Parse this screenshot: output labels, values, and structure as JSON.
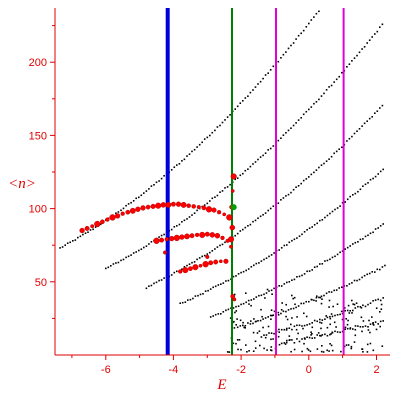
{
  "chart_data": {
    "type": "scatter",
    "title": "",
    "xlabel": "E",
    "ylabel": "<n>",
    "xlim": [
      -7.5,
      2.4
    ],
    "ylim": [
      0,
      237
    ],
    "x_ticks": [
      -6,
      -4,
      -2,
      0,
      2
    ],
    "y_ticks": [
      50,
      100,
      150,
      200
    ],
    "x_tick_labels": [
      "-6",
      "-4",
      "-2",
      "0",
      "2"
    ],
    "y_tick_labels": [
      "50",
      "100",
      "150",
      "200"
    ],
    "grid": false,
    "legend": "none",
    "colors": {
      "axes": "#e00000",
      "points": "#000000",
      "highlight": "#ff0000",
      "highlight_edge": "#b00000",
      "green_marker": "#00a000"
    },
    "vertical_lines": [
      {
        "x": -4.17,
        "color": "#0000dd",
        "width": "thick"
      },
      {
        "x": -2.27,
        "color": "#008000",
        "width": "medium"
      },
      {
        "x": -0.97,
        "color": "#dd00dd",
        "width": "medium"
      },
      {
        "x": 1.03,
        "color": "#dd00dd",
        "width": "medium"
      }
    ],
    "series": [
      {
        "kind": "band",
        "x_range": [
          -7.35,
          2.25
        ],
        "y_start": 73,
        "slope": 12.4,
        "curvature": 1.15,
        "spread": 1.0
      },
      {
        "kind": "band",
        "x_range": [
          -6.0,
          2.25
        ],
        "y_start": 59,
        "slope": 11.8,
        "curvature": 1.05,
        "spread": 1.0
      },
      {
        "kind": "band",
        "x_range": [
          -4.8,
          2.25
        ],
        "y_start": 46,
        "slope": 11.2,
        "curvature": 0.95,
        "spread": 1.0
      },
      {
        "kind": "band",
        "x_range": [
          -3.8,
          2.25
        ],
        "y_start": 35,
        "slope": 10.2,
        "curvature": 0.85,
        "spread": 1.0
      },
      {
        "kind": "band",
        "x_range": [
          -2.9,
          2.25
        ],
        "y_start": 26,
        "slope": 8.8,
        "curvature": 0.7,
        "spread": 1.2
      },
      {
        "kind": "band",
        "x_range": [
          -2.1,
          2.25
        ],
        "y_start": 19,
        "slope": 7.2,
        "curvature": 0.55,
        "spread": 1.5
      },
      {
        "kind": "band",
        "x_range": [
          -1.4,
          2.25
        ],
        "y_start": 13,
        "slope": 5.5,
        "curvature": 0.45,
        "spread": 2.0
      },
      {
        "kind": "band",
        "x_range": [
          -0.8,
          2.25
        ],
        "y_start": 8,
        "slope": 4.0,
        "curvature": 0.3,
        "spread": 2.5
      },
      {
        "kind": "cloud",
        "x_range": [
          -2.4,
          2.3
        ],
        "y_range": [
          2,
          48
        ],
        "count": 180
      },
      {
        "kind": "highlight",
        "points": [
          [
            -6.7,
            85
          ],
          [
            -6.55,
            86.5
          ],
          [
            -6.4,
            88
          ],
          [
            -6.25,
            89.5
          ],
          [
            -6.1,
            91
          ],
          [
            -5.95,
            92.5
          ],
          [
            -5.8,
            94
          ],
          [
            -5.65,
            95
          ],
          [
            -5.5,
            96.5
          ],
          [
            -5.35,
            97.5
          ],
          [
            -5.2,
            98.5
          ],
          [
            -5.05,
            99.5
          ],
          [
            -4.9,
            100.5
          ],
          [
            -4.75,
            101
          ],
          [
            -4.6,
            101.5
          ],
          [
            -4.45,
            102
          ],
          [
            -4.3,
            102.5
          ],
          [
            -4.15,
            102.5
          ],
          [
            -4.0,
            103
          ],
          [
            -3.85,
            103
          ],
          [
            -3.7,
            102.5
          ],
          [
            -3.55,
            102
          ],
          [
            -3.4,
            101.5
          ],
          [
            -3.25,
            101
          ],
          [
            -3.1,
            100.5
          ],
          [
            -2.95,
            99.5
          ],
          [
            -2.8,
            99
          ],
          [
            -2.65,
            97.5
          ],
          [
            -2.5,
            96
          ],
          [
            -2.35,
            94
          ],
          [
            -2.28,
            101
          ],
          [
            -2.25,
            112
          ],
          [
            -2.22,
            122
          ],
          [
            -2.26,
            87
          ],
          [
            -2.3,
            79
          ],
          [
            -4.5,
            78
          ],
          [
            -4.35,
            78.5
          ],
          [
            -4.2,
            79
          ],
          [
            -4.05,
            79.5
          ],
          [
            -3.9,
            80
          ],
          [
            -3.75,
            80.5
          ],
          [
            -3.6,
            81
          ],
          [
            -3.45,
            81.5
          ],
          [
            -3.3,
            82
          ],
          [
            -3.15,
            82
          ],
          [
            -3.0,
            82.5
          ],
          [
            -2.85,
            82
          ],
          [
            -2.7,
            81.5
          ],
          [
            -2.55,
            80
          ],
          [
            -2.4,
            78
          ],
          [
            -2.3,
            74
          ],
          [
            -3.8,
            57
          ],
          [
            -3.65,
            58
          ],
          [
            -3.5,
            59
          ],
          [
            -3.35,
            60
          ],
          [
            -3.2,
            61
          ],
          [
            -3.05,
            62
          ],
          [
            -2.9,
            63
          ],
          [
            -2.75,
            63.5
          ],
          [
            -2.6,
            64
          ],
          [
            -2.45,
            64
          ],
          [
            -2.2,
            38
          ],
          [
            -2.25,
            40
          ],
          [
            -4.25,
            70
          ],
          [
            -3.0,
            67
          ]
        ]
      }
    ]
  }
}
